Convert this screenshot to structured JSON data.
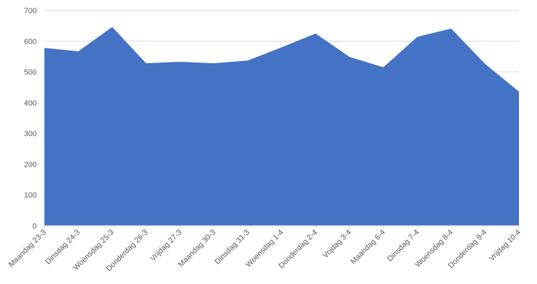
{
  "chart_data": {
    "type": "area",
    "categories": [
      "Maandag 23-3",
      "Dinsdag 24-3",
      "Woensdag 25-3",
      "Donderdag 26-3",
      "Vrijdag 27-3",
      "Maandag 30-3",
      "Dinsdag 31-3",
      "Woensdag 1-4",
      "Donderdag 2-4",
      "Vrijdag 3-4",
      "Maandag 6-4",
      "Dinsdag 7-4",
      "Woensdag 8-4",
      "Donderdag 9-4",
      "Vrijdag 10-4"
    ],
    "values": [
      578,
      567,
      646,
      528,
      533,
      528,
      537,
      580,
      625,
      549,
      515,
      614,
      641,
      526,
      436
    ],
    "color": "#4472c4",
    "ylim": [
      0,
      700
    ],
    "yticks": [
      0,
      100,
      200,
      300,
      400,
      500,
      600,
      700
    ],
    "grid": true
  }
}
